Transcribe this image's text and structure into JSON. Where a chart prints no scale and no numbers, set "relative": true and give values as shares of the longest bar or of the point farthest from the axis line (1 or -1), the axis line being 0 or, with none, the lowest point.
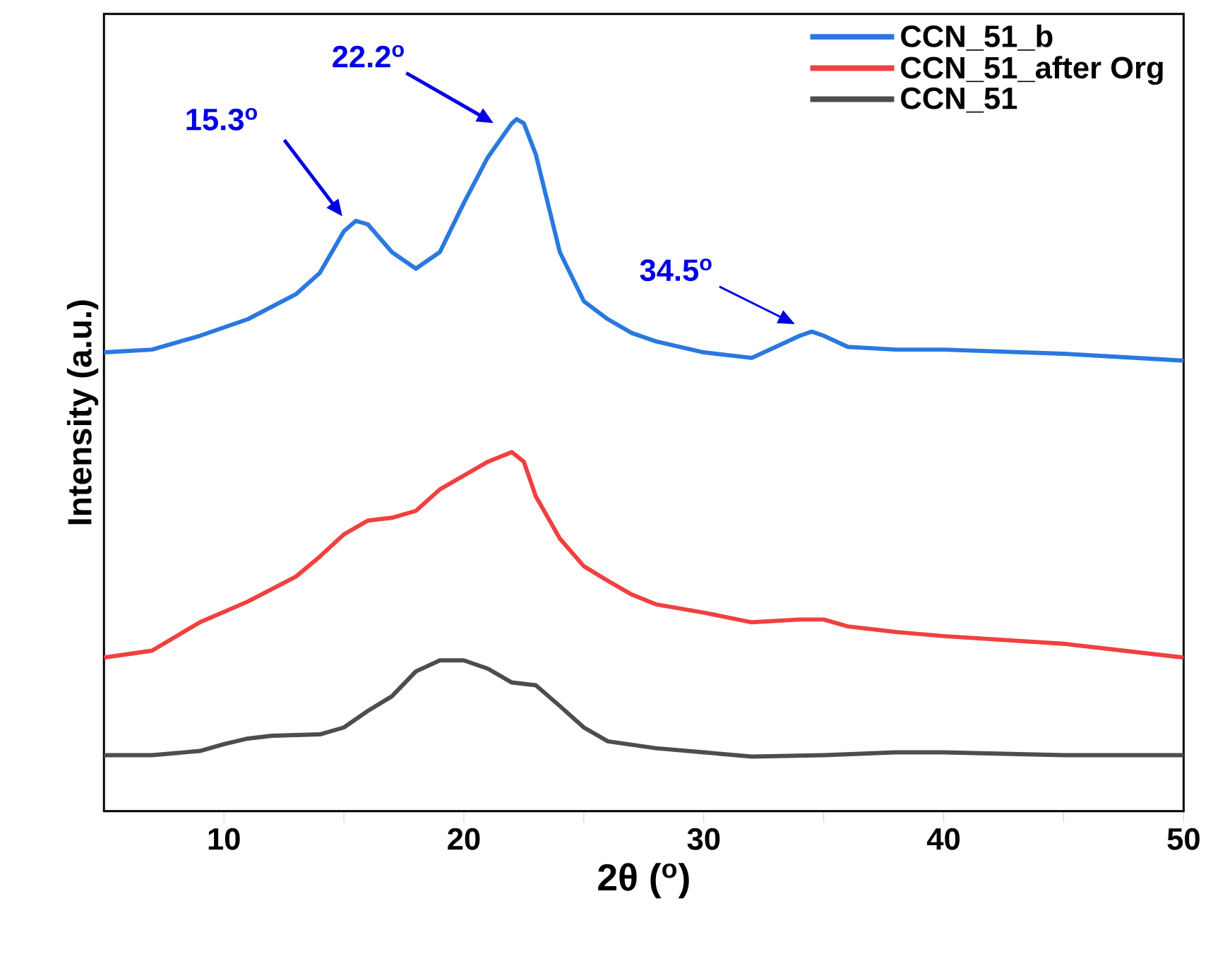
{
  "chart_data": {
    "type": "line",
    "relative": true,
    "xlabel": "2θ ($^{o}$)",
    "ylabel": "Intensity (a.u.)",
    "xlim": [
      5,
      50
    ],
    "xticks": [
      10,
      20,
      30,
      40,
      50
    ],
    "tick_labels": "x",
    "legend": "top right",
    "series": [
      {
        "name": "CCN_51_b",
        "color": "#2a78e0",
        "x": [
          5,
          7,
          9,
          11,
          13,
          14,
          15,
          15.5,
          16,
          17,
          18,
          19,
          20,
          21,
          22,
          22.2,
          22.5,
          23,
          24,
          25,
          26,
          27,
          28,
          30,
          32,
          33,
          34,
          34.5,
          35,
          36,
          38,
          40,
          45,
          50
        ],
        "values": [
          0.663,
          0.667,
          0.687,
          0.711,
          0.747,
          0.778,
          0.838,
          0.853,
          0.848,
          0.808,
          0.784,
          0.808,
          0.879,
          0.945,
          0.994,
          1.0,
          0.994,
          0.949,
          0.808,
          0.737,
          0.711,
          0.691,
          0.679,
          0.663,
          0.655,
          0.671,
          0.687,
          0.693,
          0.687,
          0.671,
          0.667,
          0.667,
          0.661,
          0.651
        ]
      },
      {
        "name": "CCN_51_after Org",
        "color": "#f04040",
        "x": [
          5,
          7,
          9,
          11,
          13,
          14,
          15,
          16,
          17,
          18,
          19,
          20,
          21,
          22,
          22.5,
          23,
          24,
          25,
          26,
          27,
          28,
          30,
          32,
          34,
          35,
          36,
          38,
          40,
          45,
          50
        ],
        "values": [
          0.222,
          0.232,
          0.273,
          0.303,
          0.339,
          0.368,
          0.4,
          0.42,
          0.424,
          0.434,
          0.465,
          0.485,
          0.505,
          0.519,
          0.505,
          0.455,
          0.394,
          0.354,
          0.333,
          0.313,
          0.299,
          0.287,
          0.273,
          0.277,
          0.277,
          0.267,
          0.259,
          0.253,
          0.242,
          0.222
        ]
      },
      {
        "name": "CCN_51",
        "color": "#4d4d4d",
        "x": [
          5,
          7,
          9,
          10,
          11,
          12,
          14,
          15,
          16,
          17,
          18,
          19,
          20,
          21,
          22,
          23,
          24,
          25,
          26,
          28,
          30,
          32,
          35,
          38,
          40,
          45,
          50
        ],
        "values": [
          0.081,
          0.081,
          0.087,
          0.097,
          0.105,
          0.109,
          0.111,
          0.121,
          0.145,
          0.166,
          0.202,
          0.218,
          0.218,
          0.206,
          0.186,
          0.182,
          0.152,
          0.121,
          0.101,
          0.091,
          0.085,
          0.079,
          0.081,
          0.085,
          0.085,
          0.081,
          0.081
        ]
      }
    ],
    "annotations": [
      "15.3$^{o}$",
      "22.2$^{o}$",
      "34.5$^{o}$"
    ]
  }
}
